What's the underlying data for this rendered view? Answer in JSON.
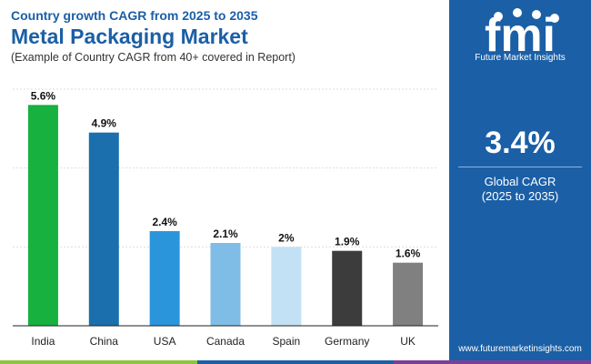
{
  "header": {
    "subtitle_top": "Country growth CAGR from 2025 to 2035",
    "title": "Metal Packaging Market",
    "note": "(Example of Country CAGR from 40+ covered in Report)"
  },
  "panel": {
    "brand_letters": "fmi",
    "brand_name": "Future Market Insights",
    "cagr_value": "3.4%",
    "cagr_label": "Global CAGR",
    "cagr_period": "(2025 to 2035)",
    "website": "www.futuremarketinsights.com"
  },
  "colors": {
    "title": "#1b5fa6",
    "panel": "#1b5fa6",
    "footer": [
      "#8cc63f",
      "#1b5fa6",
      "#7b3f98"
    ]
  },
  "chart_data": {
    "type": "bar",
    "title": "Metal Packaging Market",
    "xlabel": "",
    "ylabel": "",
    "ylim": [
      0,
      6
    ],
    "grid": true,
    "categories": [
      "India",
      "China",
      "USA",
      "Canada",
      "Spain",
      "Germany",
      "UK"
    ],
    "values": [
      5.6,
      4.9,
      2.4,
      2.1,
      2.0,
      1.9,
      1.6
    ],
    "labels": [
      "5.6%",
      "4.9%",
      "2.4%",
      "2.1%",
      "2%",
      "1.9%",
      "1.6%"
    ],
    "bar_colors": [
      "#16b13e",
      "#1b6fad",
      "#2a95db",
      "#7fbde6",
      "#c3e1f5",
      "#3c3c3c",
      "#808080"
    ]
  }
}
